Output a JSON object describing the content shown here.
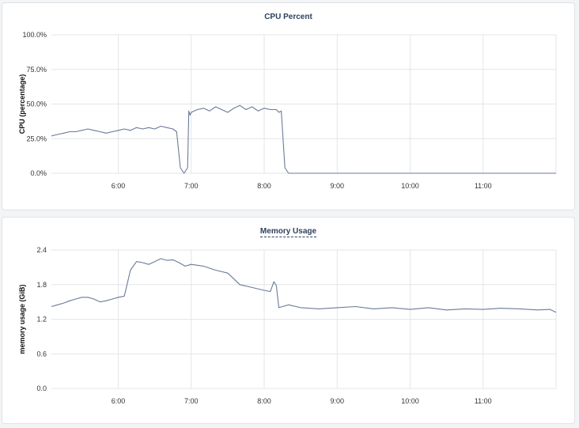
{
  "chart_data": [
    {
      "type": "line",
      "title": "CPU Percent",
      "ylabel": "CPU (percentage)",
      "xlabel": "",
      "x_ticks": [
        "6:00",
        "7:00",
        "8:00",
        "9:00",
        "10:00",
        "11:00"
      ],
      "y_ticks": [
        "0.0%",
        "25.0%",
        "50.0%",
        "75.0%",
        "100.0%"
      ],
      "xlim": [
        "5:05",
        "12:00"
      ],
      "ylim": [
        0,
        100
      ],
      "grid": true,
      "line_color": "#6b7a99",
      "series": [
        {
          "x": [
            "5:05",
            "5:10",
            "5:15",
            "5:20",
            "5:25",
            "5:30",
            "5:35",
            "5:40",
            "5:45",
            "5:50",
            "5:55",
            "6:00",
            "6:05",
            "6:10",
            "6:15",
            "6:20",
            "6:25",
            "6:30",
            "6:35",
            "6:40",
            "6:45",
            "6:48",
            "6:51",
            "6:54",
            "6:57",
            "6:58",
            "6:59",
            "7:00",
            "7:05",
            "7:10",
            "7:15",
            "7:20",
            "7:25",
            "7:30",
            "7:35",
            "7:40",
            "7:45",
            "7:50",
            "7:55",
            "8:00",
            "8:05",
            "8:10",
            "8:12",
            "8:14",
            "8:17",
            "8:20",
            "9:00",
            "10:00",
            "11:00",
            "12:00"
          ],
          "y": [
            27,
            28,
            29,
            30,
            30,
            31,
            32,
            31,
            30,
            29,
            30,
            31,
            32,
            31,
            33,
            32,
            33,
            32,
            34,
            33,
            32,
            30,
            4,
            0,
            4,
            45,
            42,
            44,
            46,
            47,
            45,
            48,
            46,
            44,
            47,
            49,
            46,
            48,
            45,
            47,
            46,
            46,
            44,
            45,
            4,
            0,
            0,
            0,
            0,
            0
          ]
        }
      ]
    },
    {
      "type": "line",
      "title": "Memory Usage",
      "ylabel": "memory usage (GiB)",
      "xlabel": "",
      "x_ticks": [
        "6:00",
        "7:00",
        "8:00",
        "9:00",
        "10:00",
        "11:00"
      ],
      "y_ticks": [
        "0.0",
        "0.6",
        "1.2",
        "1.8",
        "2.4"
      ],
      "xlim": [
        "5:05",
        "12:00"
      ],
      "ylim": [
        0,
        2.4
      ],
      "grid": true,
      "line_color": "#6b7a99",
      "series": [
        {
          "x": [
            "5:05",
            "5:10",
            "5:15",
            "5:20",
            "5:25",
            "5:30",
            "5:35",
            "5:40",
            "5:45",
            "5:50",
            "5:55",
            "6:00",
            "6:05",
            "6:10",
            "6:15",
            "6:20",
            "6:25",
            "6:30",
            "6:35",
            "6:40",
            "6:45",
            "6:50",
            "6:55",
            "7:00",
            "7:10",
            "7:20",
            "7:30",
            "7:40",
            "7:50",
            "8:00",
            "8:05",
            "8:08",
            "8:10",
            "8:12",
            "8:15",
            "8:20",
            "8:30",
            "8:45",
            "9:00",
            "9:15",
            "9:30",
            "9:45",
            "10:00",
            "10:15",
            "10:30",
            "10:45",
            "11:00",
            "11:15",
            "11:30",
            "11:45",
            "11:55",
            "12:00"
          ],
          "y": [
            1.42,
            1.45,
            1.48,
            1.52,
            1.55,
            1.58,
            1.58,
            1.55,
            1.5,
            1.52,
            1.55,
            1.58,
            1.6,
            2.05,
            2.2,
            2.18,
            2.15,
            2.2,
            2.25,
            2.22,
            2.23,
            2.18,
            2.12,
            2.15,
            2.12,
            2.05,
            2.0,
            1.8,
            1.75,
            1.7,
            1.68,
            1.85,
            1.78,
            1.4,
            1.42,
            1.45,
            1.4,
            1.38,
            1.4,
            1.42,
            1.38,
            1.4,
            1.37,
            1.4,
            1.36,
            1.38,
            1.37,
            1.39,
            1.38,
            1.36,
            1.37,
            1.32
          ]
        }
      ]
    }
  ]
}
